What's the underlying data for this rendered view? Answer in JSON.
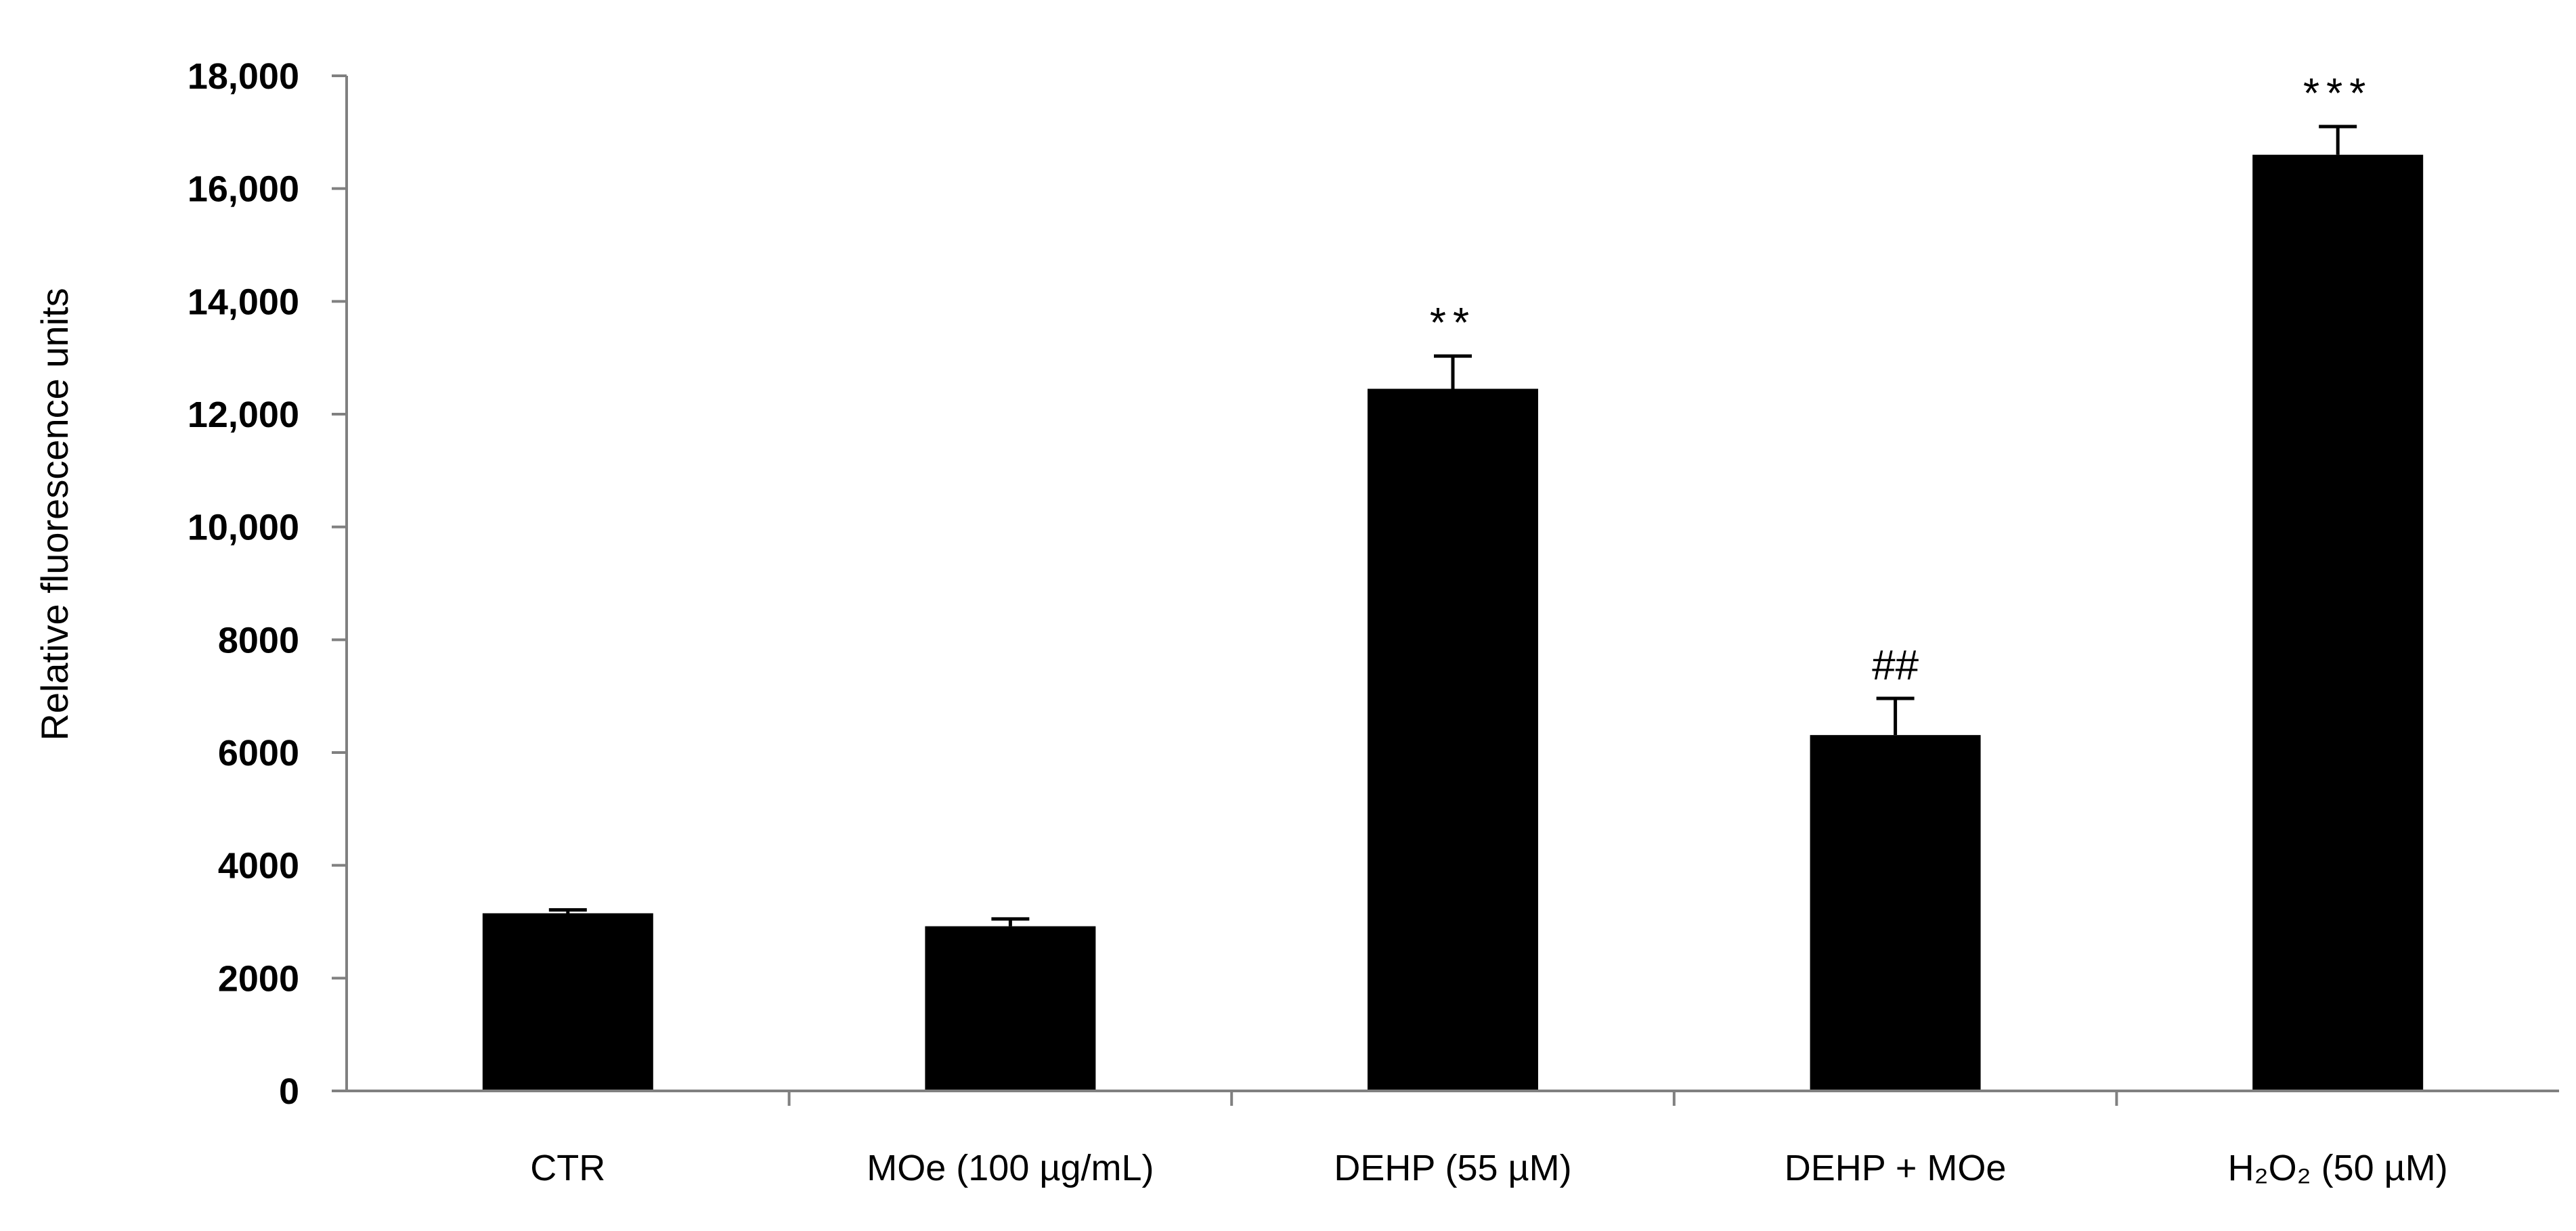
{
  "chart_data": {
    "type": "bar",
    "title": "",
    "xlabel": "",
    "ylabel": "Relative fluorescence units",
    "ylim": [
      0,
      18000
    ],
    "yticks": [
      0,
      2000,
      4000,
      6000,
      8000,
      10000,
      12000,
      14000,
      16000,
      18000
    ],
    "ytick_labels": [
      "0",
      "2000",
      "4000",
      "6000",
      "8000",
      "10,000",
      "12,000",
      "14,000",
      "16,000",
      "18,000"
    ],
    "categories": [
      "CTR",
      "MOe (100 µg/mL)",
      "DEHP (55 µM)",
      "DEHP + MOe",
      "H₂O₂ (50 µM)"
    ],
    "values": [
      3150,
      2920,
      12450,
      6310,
      16600
    ],
    "errors": [
      60,
      130,
      580,
      650,
      500
    ],
    "annotations": [
      "",
      "",
      "**",
      "##",
      "***"
    ],
    "bar_color": "#000000",
    "grid": false,
    "legend": "none"
  }
}
